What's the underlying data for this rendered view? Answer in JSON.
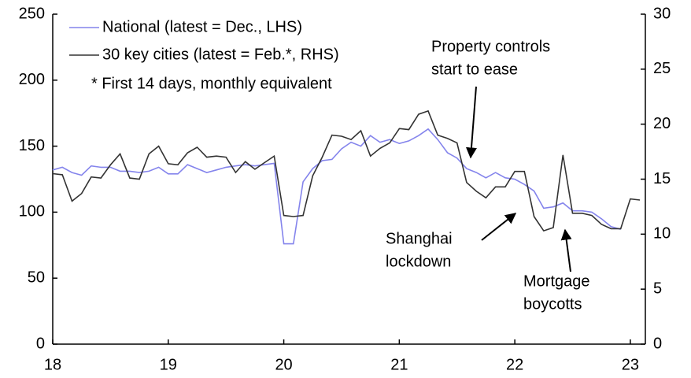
{
  "chart_data": {
    "type": "line",
    "xlim": [
      18,
      23.13
    ],
    "xticks": [
      18,
      19,
      20,
      21,
      22,
      23
    ],
    "ylim": [
      0,
      250
    ],
    "yticks": [
      0,
      50,
      100,
      150,
      200,
      250
    ],
    "y2lim": [
      0,
      30
    ],
    "y2ticks": [
      0,
      5,
      10,
      15,
      20,
      25,
      30
    ],
    "note": "* First 14 days, monthly equivalent",
    "annotations": [
      {
        "lines": [
          "Property controls",
          "start to ease"
        ]
      },
      {
        "lines": [
          "Shanghai",
          "lockdown"
        ]
      },
      {
        "lines": [
          "Mortgage",
          "boycotts"
        ]
      }
    ],
    "series": [
      {
        "name": "National (latest = Dec., LHS)",
        "color": "#8484ec",
        "axis": "y",
        "x": [
          18,
          18.083,
          18.167,
          18.25,
          18.333,
          18.417,
          18.5,
          18.583,
          18.667,
          18.75,
          18.833,
          18.917,
          19,
          19.083,
          19.167,
          19.25,
          19.333,
          19.417,
          19.5,
          19.583,
          19.667,
          19.75,
          19.833,
          19.917,
          20,
          20.083,
          20.167,
          20.25,
          20.333,
          20.417,
          20.5,
          20.583,
          20.667,
          20.75,
          20.833,
          20.917,
          21,
          21.083,
          21.167,
          21.25,
          21.333,
          21.417,
          21.5,
          21.583,
          21.667,
          21.75,
          21.833,
          21.917,
          22,
          22.083,
          22.167,
          22.25,
          22.333,
          22.417,
          22.5,
          22.583,
          22.667,
          22.75,
          22.833,
          22.917
        ],
        "values": [
          132,
          134,
          130,
          128,
          135,
          134,
          134,
          131,
          131,
          130,
          131,
          134,
          129,
          129,
          136,
          133,
          130,
          132,
          134,
          135,
          136,
          135,
          136,
          137,
          76,
          76,
          123,
          133,
          139,
          140,
          148,
          153,
          150,
          158,
          153,
          155,
          152,
          154,
          158,
          163,
          155,
          145,
          141,
          133,
          130,
          126,
          130,
          126,
          125,
          121,
          116,
          103,
          104,
          107,
          101,
          101,
          100,
          95,
          89,
          87
        ]
      },
      {
        "name": "30 key cities (latest = Feb.*, RHS)",
        "color": "#333333",
        "axis": "y2",
        "x": [
          18,
          18.083,
          18.167,
          18.25,
          18.333,
          18.417,
          18.5,
          18.583,
          18.667,
          18.75,
          18.833,
          18.917,
          19,
          19.083,
          19.167,
          19.25,
          19.333,
          19.417,
          19.5,
          19.583,
          19.667,
          19.75,
          19.833,
          19.917,
          20,
          20.083,
          20.167,
          20.25,
          20.333,
          20.417,
          20.5,
          20.583,
          20.667,
          20.75,
          20.833,
          20.917,
          21,
          21.083,
          21.167,
          21.25,
          21.333,
          21.417,
          21.5,
          21.583,
          21.667,
          21.75,
          21.833,
          21.917,
          22,
          22.083,
          22.167,
          22.25,
          22.333,
          22.417,
          22.5,
          22.583,
          22.667,
          22.75,
          22.833,
          22.917,
          23,
          23.083
        ],
        "values": [
          15.5,
          15.4,
          13.0,
          13.7,
          15.2,
          15.1,
          16.3,
          17.3,
          15.1,
          15.0,
          17.3,
          18.0,
          16.4,
          16.3,
          17.4,
          17.9,
          17.0,
          17.1,
          17.0,
          15.6,
          16.6,
          15.9,
          16.5,
          17.1,
          11.7,
          11.6,
          11.7,
          15.3,
          17.0,
          19.0,
          18.9,
          18.6,
          19.4,
          17.1,
          17.8,
          18.3,
          19.6,
          19.5,
          20.9,
          21.2,
          19.0,
          18.7,
          18.3,
          14.7,
          13.9,
          13.3,
          14.3,
          14.3,
          15.7,
          15.7,
          11.6,
          10.3,
          10.6,
          17.2,
          11.9,
          11.9,
          11.7,
          10.9,
          10.5,
          10.5,
          13.2,
          13.1
        ]
      }
    ]
  }
}
